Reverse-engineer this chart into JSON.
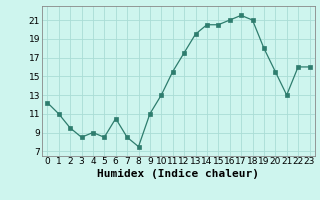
{
  "x": [
    0,
    1,
    2,
    3,
    4,
    5,
    6,
    7,
    8,
    9,
    10,
    11,
    12,
    13,
    14,
    15,
    16,
    17,
    18,
    19,
    20,
    21,
    22,
    23
  ],
  "y": [
    12.2,
    11.0,
    9.5,
    8.5,
    9.0,
    8.5,
    10.5,
    8.5,
    7.5,
    11.0,
    13.0,
    15.5,
    17.5,
    19.5,
    20.5,
    20.5,
    21.0,
    21.5,
    21.0,
    18.0,
    15.5,
    13.0,
    16.0,
    16.0
  ],
  "xlabel": "Humidex (Indice chaleur)",
  "line_color": "#2e7d6e",
  "marker_color": "#2e7d6e",
  "bg_color": "#cef5ee",
  "grid_color": "#aaddd5",
  "ylim": [
    6.5,
    22.5
  ],
  "xlim": [
    -0.5,
    23.5
  ],
  "yticks": [
    7,
    9,
    11,
    13,
    15,
    17,
    19,
    21
  ],
  "xticks": [
    0,
    1,
    2,
    3,
    4,
    5,
    6,
    7,
    8,
    9,
    10,
    11,
    12,
    13,
    14,
    15,
    16,
    17,
    18,
    19,
    20,
    21,
    22,
    23
  ],
  "xtick_labels": [
    "0",
    "1",
    "2",
    "3",
    "4",
    "5",
    "6",
    "7",
    "8",
    "9",
    "10",
    "11",
    "12",
    "13",
    "14",
    "15",
    "16",
    "17",
    "18",
    "19",
    "20",
    "21",
    "22",
    "23"
  ],
  "tick_fontsize": 6.5,
  "xlabel_fontsize": 8
}
